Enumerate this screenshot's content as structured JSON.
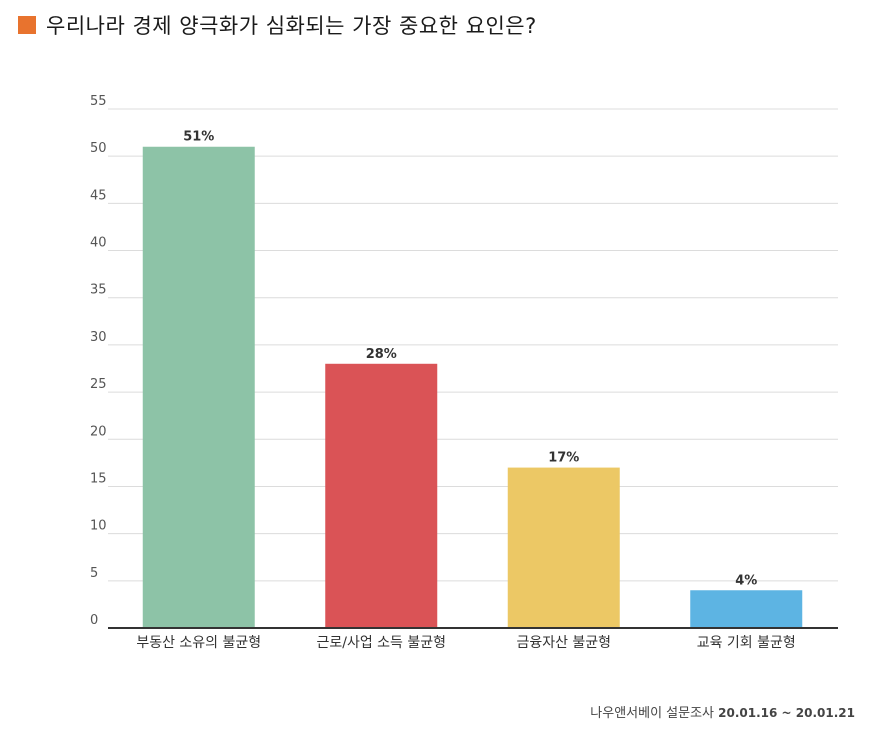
{
  "title": "우리나라 경제 양극화가 심화되는 가장 중요한 요인은?",
  "source": {
    "name": "나우앤서베이 설문조사",
    "date_range": "20.01.16 ~ 20.01.21"
  },
  "colors": {
    "title_square": "#E8732E",
    "grid": "#dcdcdc",
    "axis": "#333333",
    "tick_text": "#555555",
    "label_text": "#333333"
  },
  "chart_data": {
    "type": "bar",
    "title": "우리나라 경제 양극화가 심화되는 가장 중요한 요인은?",
    "xlabel": "",
    "ylabel": "",
    "categories": [
      "부동산 소유의 불균형",
      "근로/사업 소득 불균형",
      "금융자산 불균형",
      "교육 기회 불균형"
    ],
    "values": [
      51,
      28,
      17,
      4
    ],
    "data_labels": [
      "51%",
      "28%",
      "17%",
      "4%"
    ],
    "bar_colors": [
      "#8DC3A7",
      "#DA5356",
      "#ECC865",
      "#5DB4E3"
    ],
    "ylim": [
      0,
      55
    ],
    "yticks": [
      0,
      5,
      10,
      15,
      20,
      25,
      30,
      35,
      40,
      45,
      50,
      55
    ],
    "grid": true,
    "legend": "none"
  }
}
